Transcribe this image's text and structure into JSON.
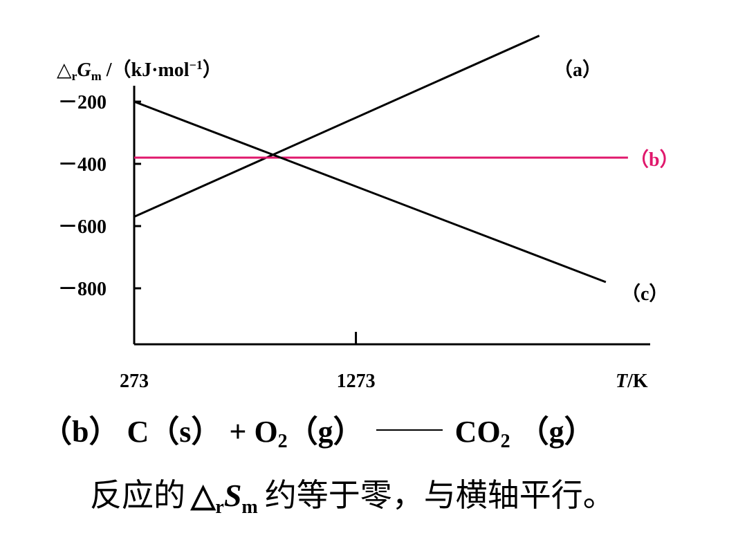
{
  "chart_data": {
    "type": "line",
    "ylabel_parts": {
      "prefix": "△",
      "sub_r": "r",
      "symbol": "G",
      "sub_m": "m",
      "unit": " /（kJ·mol",
      "exp": "−1",
      "close": "）"
    },
    "xlabel_parts": {
      "symbol": "T",
      "unit": "/K"
    },
    "y_ticks": [
      {
        "value": -200,
        "label": "－200"
      },
      {
        "value": -400,
        "label": "－400"
      },
      {
        "value": -600,
        "label": "－600"
      },
      {
        "value": -800,
        "label": "－800"
      }
    ],
    "x_ticks": [
      {
        "value": 273,
        "label": "273"
      },
      {
        "value": 1273,
        "label": "1273"
      }
    ],
    "xlim": [
      273,
      2650
    ],
    "ylim": [
      -980,
      -60
    ],
    "grid": false,
    "series": [
      {
        "name": "（a）",
        "color": "#000000",
        "x": [
          273,
          2100
        ],
        "y": [
          -570,
          12
        ]
      },
      {
        "name": "（b）",
        "color": "#e0186c",
        "x": [
          273,
          2500
        ],
        "y": [
          -380,
          -380
        ]
      },
      {
        "name": "（c）",
        "color": "#000000",
        "x": [
          273,
          2400
        ],
        "y": [
          -200,
          -780
        ]
      }
    ]
  },
  "equation": {
    "part1": "（b） C（s） + O",
    "sub1": "2",
    "part2": "（g）",
    "part3": "CO",
    "sub2": "2",
    "part4": "（g）"
  },
  "conclusion": {
    "before": "反应的",
    "delta": "△",
    "sub_r": "r",
    "symbol": "S",
    "sub_m": "m",
    "after": "约等于零，与横轴平行。"
  }
}
